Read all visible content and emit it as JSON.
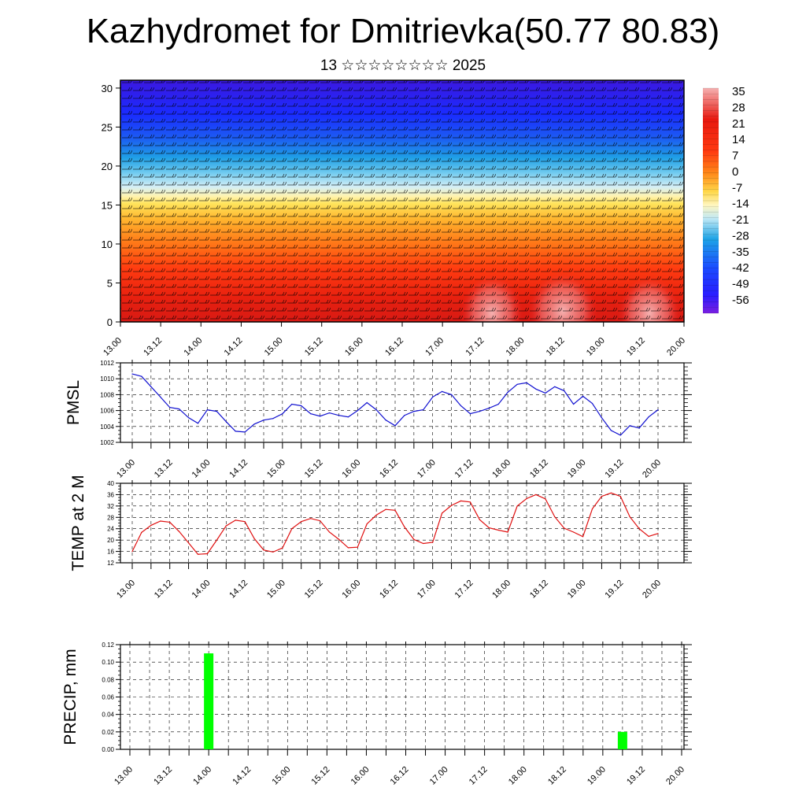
{
  "header": {
    "title": "Kazhydromet for Dmitrievka(50.77 80.83)",
    "subtitle": "13 ☆☆☆☆☆☆☆☆ 2025"
  },
  "chart_data": [
    {
      "type": "heatmap",
      "description_scope": "upper-air temperature cross-section with wind barbs",
      "xlabel": "",
      "ylabel": "",
      "x_ticks": [
        "13.00",
        "13.12",
        "14.00",
        "14.12",
        "15.00",
        "15.12",
        "16.00",
        "16.12",
        "17.00",
        "17.12",
        "18.00",
        "18.12",
        "19.00",
        "19.12",
        "20.00"
      ],
      "y_ticks": [
        0,
        5,
        10,
        15,
        20,
        25,
        30
      ],
      "ylim": [
        0,
        31
      ],
      "colorbar_labels": [
        35,
        28,
        21,
        14,
        7,
        0,
        -7,
        -14,
        -21,
        -28,
        -35,
        -42,
        -49,
        -56
      ],
      "colorbar_range": [
        -60,
        38
      ],
      "colors": {
        "warm": "#e01010",
        "hot": "#f29d9d",
        "orange": "#ff6a00",
        "yellow": "#ffe45c",
        "lightblue": "#bfe8f5",
        "cyan": "#1fb4e8",
        "blue": "#1a3bff",
        "violet": "#6a1fd8"
      }
    },
    {
      "type": "line",
      "ylabel": "PMSL",
      "ylim": [
        1002,
        1012
      ],
      "y_ticks": [
        1002,
        1004,
        1006,
        1008,
        1010,
        1012
      ],
      "x_ticks": [
        "13.00",
        "13.12",
        "14.00",
        "14.12",
        "15.00",
        "15.12",
        "16.00",
        "16.12",
        "17.00",
        "17.12",
        "18.00",
        "18.12",
        "19.00",
        "19.12",
        "20.00"
      ],
      "color": "#1010d0",
      "grid": true,
      "values": [
        1010.6,
        1010.3,
        1009.0,
        1007.7,
        1006.4,
        1006.2,
        1005.1,
        1004.4,
        1006.1,
        1005.9,
        1004.6,
        1003.4,
        1003.3,
        1004.3,
        1004.8,
        1005.0,
        1005.6,
        1006.8,
        1006.6,
        1005.6,
        1005.3,
        1005.7,
        1005.4,
        1005.2,
        1006.0,
        1007.0,
        1006.1,
        1004.8,
        1004.1,
        1005.4,
        1005.9,
        1006.1,
        1007.7,
        1008.4,
        1008.0,
        1006.6,
        1005.6,
        1005.9,
        1006.3,
        1006.8,
        1008.3,
        1009.3,
        1009.5,
        1008.7,
        1008.2,
        1009.0,
        1008.5,
        1006.8,
        1007.8,
        1006.9,
        1005.1,
        1003.5,
        1002.9,
        1004.1,
        1003.8,
        1005.2,
        1006.1
      ]
    },
    {
      "type": "line",
      "ylabel": "TEMP at 2 M",
      "ylim": [
        12,
        40
      ],
      "y_ticks": [
        12,
        16,
        20,
        24,
        28,
        32,
        36,
        40
      ],
      "x_ticks": [
        "13.00",
        "13.12",
        "14.00",
        "14.12",
        "15.00",
        "15.12",
        "16.00",
        "16.12",
        "17.00",
        "17.12",
        "18.00",
        "18.12",
        "19.00",
        "19.12",
        "20.00"
      ],
      "color": "#e01010",
      "grid": true,
      "values": [
        16,
        22.7,
        25.2,
        26.7,
        26.3,
        23,
        19,
        15,
        15.2,
        20,
        25,
        27,
        26.5,
        20.5,
        16.5,
        15.8,
        17.2,
        24,
        26.5,
        27.6,
        26.8,
        22.8,
        20.3,
        17.3,
        17.5,
        25.7,
        28.8,
        30.8,
        30.5,
        24.6,
        20.2,
        18.8,
        19.2,
        29.5,
        32.2,
        33.8,
        33.4,
        27.2,
        24.3,
        23.5,
        22.8,
        32,
        34.6,
        36,
        34.5,
        28.2,
        24.2,
        22.8,
        21.2,
        31,
        35.4,
        36.6,
        35.4,
        28.2,
        24,
        21.3,
        22.3
      ]
    },
    {
      "type": "bar",
      "ylabel": "PRECIP, mm",
      "ylim": [
        0,
        0.12
      ],
      "y_ticks": [
        "0.00",
        "0.02",
        "0.04",
        "0.06",
        "0.08",
        "0.10",
        "0.12"
      ],
      "x_ticks": [
        "13.00",
        "13.12",
        "14.00",
        "14.12",
        "15.00",
        "15.12",
        "16.00",
        "16.12",
        "17.00",
        "17.12",
        "18.00",
        "18.12",
        "19.00",
        "19.12",
        "20.00"
      ],
      "color": "#00ff00",
      "grid": true,
      "bars": [
        {
          "x_hours": 24,
          "value": 0.11
        },
        {
          "x_hours": 150,
          "value": 0.02
        }
      ]
    }
  ]
}
